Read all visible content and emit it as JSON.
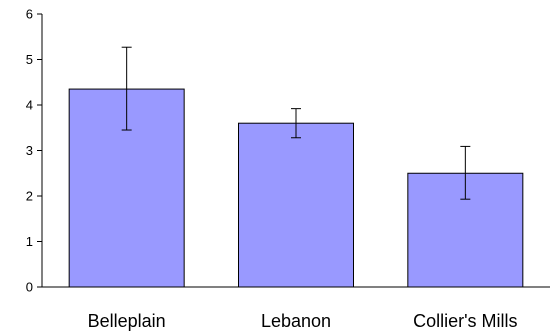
{
  "chart_data": {
    "type": "bar",
    "title": "",
    "xlabel": "",
    "ylabel": "",
    "categories": [
      "Belleplain",
      "Lebanon",
      "Collier's Mills"
    ],
    "values": [
      4.35,
      3.6,
      2.5
    ],
    "error_low": [
      3.45,
      3.28,
      1.93
    ],
    "error_high": [
      5.27,
      3.92,
      3.09
    ],
    "ylim": [
      0,
      6
    ],
    "yticks": [
      "0",
      "1",
      "2",
      "3",
      "4",
      "5",
      "6"
    ],
    "grid": false,
    "legend": "none",
    "bar_color": "#9999ff",
    "bar_edge_color": "#000000"
  }
}
